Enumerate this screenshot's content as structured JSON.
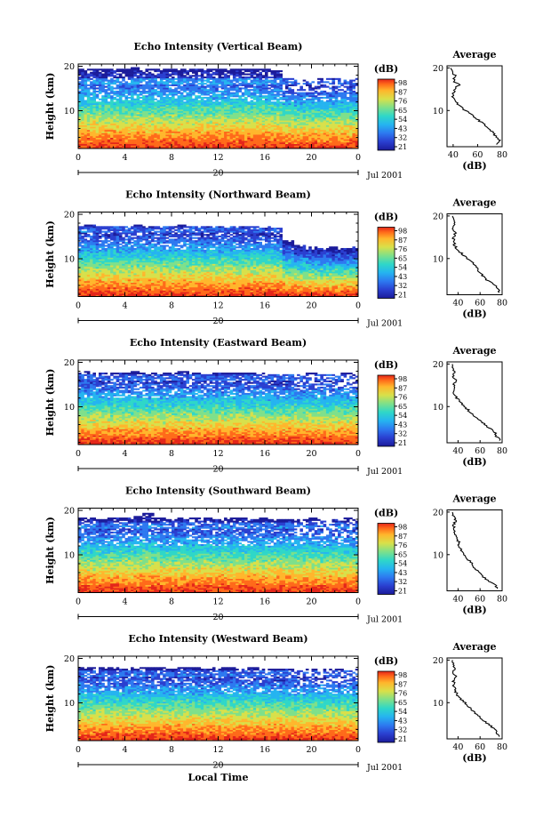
{
  "shared": {
    "ylabel": "Height (km)",
    "x_ticks": [
      "0",
      "4",
      "8",
      "12",
      "16",
      "20",
      "0"
    ],
    "y_ticks": [
      "20",
      "10"
    ],
    "date_day": "20",
    "date_label": "Jul 2001",
    "xlabel": "Local Time",
    "colorbar_unit": "(dB)",
    "colorbar_ticks": [
      "98",
      "87",
      "76",
      "65",
      "54",
      "43",
      "32",
      "21"
    ],
    "avg_title": "Average",
    "avg_unit": "(dB)",
    "colors": {
      "colormap": [
        "#1b1b9a",
        "#2a3fd0",
        "#2d79f0",
        "#25b4f0",
        "#2fd7c8",
        "#7ee08a",
        "#d8e04a",
        "#ffb62c",
        "#ff6a1a",
        "#e4261a"
      ]
    }
  },
  "chart_data": [
    {
      "type": "heatmap",
      "title": "Echo Intensity (Vertical Beam)",
      "xlabel": "Local Time",
      "ylabel": "Height (km)",
      "xlim": [
        0,
        24
      ],
      "ylim": [
        1.5,
        20.5
      ],
      "colorbar": {
        "label": "(dB)",
        "range": [
          21,
          98
        ]
      },
      "echo_top_km": [
        19.5,
        19.6,
        19.4,
        19.6,
        19.5,
        19.7,
        19.4,
        19.5,
        19.6,
        19.3,
        19.5,
        19.6,
        19.5,
        19.4,
        19.6,
        19.5,
        19.4,
        19.2,
        17.5,
        17.0,
        16.8,
        17.2,
        17.4,
        17.0,
        17.3
      ],
      "average_profile": {
        "title": "Average",
        "xlabel": "(dB)",
        "xlim": [
          35,
          80
        ],
        "xticks": [
          40,
          60,
          80
        ],
        "height_km": [
          2,
          3,
          4,
          5,
          6,
          7,
          8,
          9,
          10,
          11,
          12,
          13,
          14,
          15,
          16,
          17,
          18,
          19,
          20
        ],
        "value_db": [
          76,
          78,
          75,
          72,
          68,
          64,
          60,
          55,
          50,
          46,
          42,
          40,
          40,
          41,
          45,
          40,
          42,
          39,
          38
        ]
      }
    },
    {
      "type": "heatmap",
      "title": "Echo Intensity (Northward Beam)",
      "xlabel": "Local Time",
      "ylabel": "Height (km)",
      "xlim": [
        0,
        24
      ],
      "ylim": [
        1.5,
        20.5
      ],
      "colorbar": {
        "label": "(dB)",
        "range": [
          21,
          98
        ]
      },
      "echo_top_km": [
        17.5,
        17.6,
        17.4,
        17.5,
        17.3,
        17.6,
        17.4,
        17.5,
        17.2,
        17.6,
        17.5,
        17.3,
        17.4,
        17.5,
        17.2,
        17.4,
        17.3,
        17.0,
        14.0,
        13.0,
        12.8,
        12.5,
        12.6,
        12.4,
        12.7
      ],
      "average_profile": {
        "title": "Average",
        "xlabel": "(dB)",
        "xlim": [
          30,
          80
        ],
        "xticks": [
          40,
          60,
          80
        ],
        "height_km": [
          2,
          3,
          4,
          5,
          6,
          7,
          8,
          9,
          10,
          11,
          12,
          13,
          14,
          15,
          16,
          17,
          18,
          19,
          20
        ],
        "value_db": [
          78,
          76,
          72,
          66,
          62,
          59,
          56,
          53,
          48,
          44,
          40,
          37,
          36,
          36,
          38,
          36,
          37,
          36,
          35
        ]
      }
    },
    {
      "type": "heatmap",
      "title": "Echo Intensity (Eastward Beam)",
      "xlabel": "Local Time",
      "ylabel": "Height (km)",
      "xlim": [
        0,
        24
      ],
      "ylim": [
        1.5,
        20.5
      ],
      "colorbar": {
        "label": "(dB)",
        "range": [
          21,
          98
        ]
      },
      "echo_top_km": [
        17.8,
        17.9,
        17.7,
        17.8,
        17.6,
        17.9,
        17.7,
        17.8,
        17.6,
        17.9,
        17.8,
        17.5,
        17.7,
        17.8,
        17.6,
        17.7,
        17.6,
        17.4,
        17.5,
        17.3,
        17.6,
        17.4,
        17.5,
        17.6,
        17.4
      ],
      "average_profile": {
        "title": "Average",
        "xlabel": "(dB)",
        "xlim": [
          30,
          80
        ],
        "xticks": [
          40,
          60,
          80
        ],
        "height_km": [
          2,
          3,
          4,
          5,
          6,
          7,
          8,
          9,
          10,
          11,
          12,
          13,
          14,
          15,
          16,
          17,
          18,
          19,
          20
        ],
        "value_db": [
          78,
          75,
          73,
          68,
          63,
          58,
          54,
          50,
          46,
          42,
          39,
          37,
          36,
          36,
          38,
          36,
          37,
          35,
          35
        ]
      }
    },
    {
      "type": "heatmap",
      "title": "Echo Intensity (Southward Beam)",
      "xlabel": "Local Time",
      "ylabel": "Height (km)",
      "xlim": [
        0,
        24
      ],
      "ylim": [
        1.5,
        20.5
      ],
      "colorbar": {
        "label": "(dB)",
        "range": [
          21,
          98
        ]
      },
      "echo_top_km": [
        18.3,
        18.4,
        18.2,
        18.5,
        18.3,
        18.6,
        19.4,
        18.4,
        18.2,
        18.5,
        18.3,
        18.4,
        18.2,
        18.3,
        18.5,
        18.2,
        18.4,
        18.1,
        18.2,
        18.0,
        18.3,
        18.1,
        18.2,
        18.3,
        18.0
      ],
      "average_profile": {
        "title": "Average",
        "xlabel": "(dB)",
        "xlim": [
          30,
          80
        ],
        "xticks": [
          40,
          60,
          80
        ],
        "height_km": [
          2,
          3,
          4,
          5,
          6,
          7,
          8,
          9,
          10,
          11,
          12,
          13,
          14,
          15,
          16,
          17,
          18,
          19,
          20
        ],
        "value_db": [
          76,
          73,
          66,
          62,
          58,
          55,
          52,
          49,
          46,
          43,
          40,
          41,
          38,
          37,
          36,
          36,
          38,
          36,
          35
        ]
      }
    },
    {
      "type": "heatmap",
      "title": "Echo Intensity (Westward Beam)",
      "xlabel": "Local Time",
      "ylabel": "Height (km)",
      "xlim": [
        0,
        24
      ],
      "ylim": [
        1.5,
        20.5
      ],
      "colorbar": {
        "label": "(dB)",
        "range": [
          21,
          98
        ]
      },
      "echo_top_km": [
        18.0,
        18.1,
        17.9,
        18.0,
        17.8,
        18.1,
        17.9,
        18.0,
        17.8,
        18.1,
        18.0,
        17.7,
        17.9,
        18.0,
        17.8,
        17.9,
        17.8,
        17.6,
        17.7,
        17.5,
        17.8,
        17.6,
        17.7,
        17.8,
        17.6
      ],
      "average_profile": {
        "title": "Average",
        "xlabel": "(dB)",
        "xlim": [
          30,
          80
        ],
        "xticks": [
          40,
          60,
          80
        ],
        "height_km": [
          2,
          3,
          4,
          5,
          6,
          7,
          8,
          9,
          10,
          11,
          12,
          13,
          14,
          15,
          16,
          17,
          18,
          19,
          20
        ],
        "value_db": [
          78,
          75,
          72,
          67,
          62,
          58,
          54,
          50,
          46,
          42,
          39,
          37,
          36,
          36,
          38,
          36,
          37,
          35,
          35
        ]
      }
    }
  ]
}
